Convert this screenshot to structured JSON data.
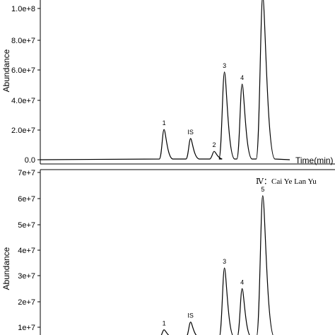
{
  "chart_data": [
    {
      "type": "line",
      "title": "",
      "xlabel": "Time(min)",
      "ylabel": "Abundance",
      "ylim": [
        0,
        10000000
      ],
      "yticks": [
        0,
        20000000,
        40000000,
        60000000,
        80000000,
        100000000
      ],
      "ytick_labels": [
        "0.0",
        "2.0e+7",
        "4.0e+7",
        "6.0e+7",
        "8.0e+7",
        "1.0e+8"
      ],
      "series": [
        {
          "peaks": [
            {
              "label": "1",
              "x": 0.42,
              "y": 20000000
            },
            {
              "label": "IS",
              "x": 0.51,
              "y": 14000000
            },
            {
              "label": "2",
              "x": 0.59,
              "y": 5500000
            },
            {
              "label": "3",
              "x": 0.625,
              "y": 58000000
            },
            {
              "label": "4",
              "x": 0.685,
              "y": 50000000
            },
            {
              "label": "",
              "x": 0.755,
              "y": 108000000
            }
          ]
        }
      ]
    },
    {
      "type": "line",
      "title": "Ⅳ：Cai Ye Lan Yu",
      "xlabel": "",
      "ylabel": "Abundance",
      "yticks": [
        10000000,
        20000000,
        30000000,
        40000000,
        50000000,
        60000000,
        70000000
      ],
      "ytick_labels": [
        "1e+7",
        "2e+7",
        "3e+7",
        "4e+7",
        "5e+7",
        "6e+7",
        "7e+7"
      ],
      "series": [
        {
          "peaks": [
            {
              "label": "1",
              "x": 0.42,
              "y": 9000000
            },
            {
              "label": "IS",
              "x": 0.51,
              "y": 12000000
            },
            {
              "label": "",
              "x": 0.59,
              "y": 3000000
            },
            {
              "label": "3",
              "x": 0.625,
              "y": 33000000
            },
            {
              "label": "4",
              "x": 0.685,
              "y": 25000000
            },
            {
              "label": "5",
              "x": 0.755,
              "y": 61000000
            }
          ]
        }
      ]
    }
  ]
}
